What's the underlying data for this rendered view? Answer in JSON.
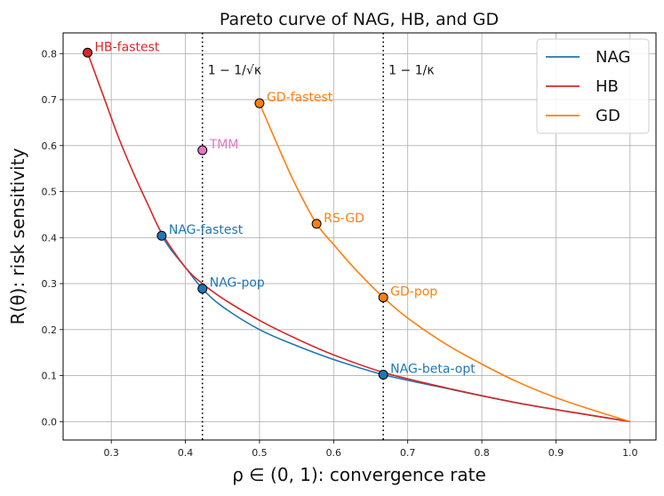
{
  "chart_data": {
    "type": "line",
    "title": "Pareto curve of NAG, HB, and GD",
    "xlabel": "ρ ∈ (0, 1): convergence rate",
    "ylabel": "R(θ): risk sensitivity",
    "xlim": [
      0.235,
      1.035
    ],
    "ylim": [
      -0.04,
      0.845
    ],
    "xticks": [
      0.3,
      0.4,
      0.5,
      0.6,
      0.7,
      0.8,
      0.9,
      1.0
    ],
    "xtick_labels": [
      "0.3",
      "0.4",
      "0.5",
      "0.6",
      "0.7",
      "0.8",
      "0.9",
      "1.0"
    ],
    "yticks": [
      0.0,
      0.1,
      0.2,
      0.3,
      0.4,
      0.5,
      0.6,
      0.7,
      0.8
    ],
    "ytick_labels": [
      "0.0",
      "0.1",
      "0.2",
      "0.3",
      "0.4",
      "0.5",
      "0.6",
      "0.7",
      "0.8"
    ],
    "grid": true,
    "legend_position": "top-right",
    "series": [
      {
        "name": "NAG",
        "color": "#1f77b4",
        "x": [
          0.368,
          0.38,
          0.4,
          0.423,
          0.45,
          0.5,
          0.55,
          0.6,
          0.667,
          0.75,
          0.85,
          0.95,
          1.0
        ],
        "y": [
          0.404,
          0.375,
          0.335,
          0.289,
          0.25,
          0.2,
          0.165,
          0.135,
          0.102,
          0.073,
          0.04,
          0.013,
          0.0
        ]
      },
      {
        "name": "HB",
        "color": "#d62728",
        "x": [
          0.268,
          0.29,
          0.31,
          0.33,
          0.35,
          0.368,
          0.4,
          0.423,
          0.45,
          0.5,
          0.55,
          0.6,
          0.667,
          0.75,
          0.85,
          0.95,
          1.0
        ],
        "y": [
          0.802,
          0.705,
          0.617,
          0.54,
          0.47,
          0.41,
          0.335,
          0.3,
          0.268,
          0.22,
          0.18,
          0.145,
          0.107,
          0.074,
          0.04,
          0.013,
          0.0
        ]
      },
      {
        "name": "GD",
        "color": "#ff7f0e",
        "x": [
          0.5,
          0.53,
          0.55,
          0.577,
          0.6,
          0.63,
          0.667,
          0.7,
          0.75,
          0.8,
          0.85,
          0.9,
          0.95,
          1.0
        ],
        "y": [
          0.692,
          0.58,
          0.51,
          0.43,
          0.385,
          0.33,
          0.27,
          0.225,
          0.17,
          0.125,
          0.085,
          0.052,
          0.025,
          0.0
        ]
      }
    ],
    "points": [
      {
        "label": "HB-fastest",
        "x": 0.268,
        "y": 0.802,
        "color": "#d62728"
      },
      {
        "label": "TMM",
        "x": 0.423,
        "y": 0.59,
        "color": "#e377c2"
      },
      {
        "label": "GD-fastest",
        "x": 0.5,
        "y": 0.692,
        "color": "#ff7f0e"
      },
      {
        "label": "RS-GD",
        "x": 0.577,
        "y": 0.43,
        "color": "#ff7f0e"
      },
      {
        "label": "GD-pop",
        "x": 0.667,
        "y": 0.27,
        "color": "#ff7f0e"
      },
      {
        "label": "NAG-fastest",
        "x": 0.368,
        "y": 0.404,
        "color": "#1f77b4"
      },
      {
        "label": "NAG-pop",
        "x": 0.423,
        "y": 0.289,
        "color": "#1f77b4"
      },
      {
        "label": "NAG-beta-opt",
        "x": 0.667,
        "y": 0.102,
        "color": "#1f77b4"
      }
    ],
    "vlines": [
      {
        "x": 0.423,
        "label": "1 − 1/√κ"
      },
      {
        "x": 0.667,
        "label": "1 − 1/κ"
      }
    ]
  }
}
